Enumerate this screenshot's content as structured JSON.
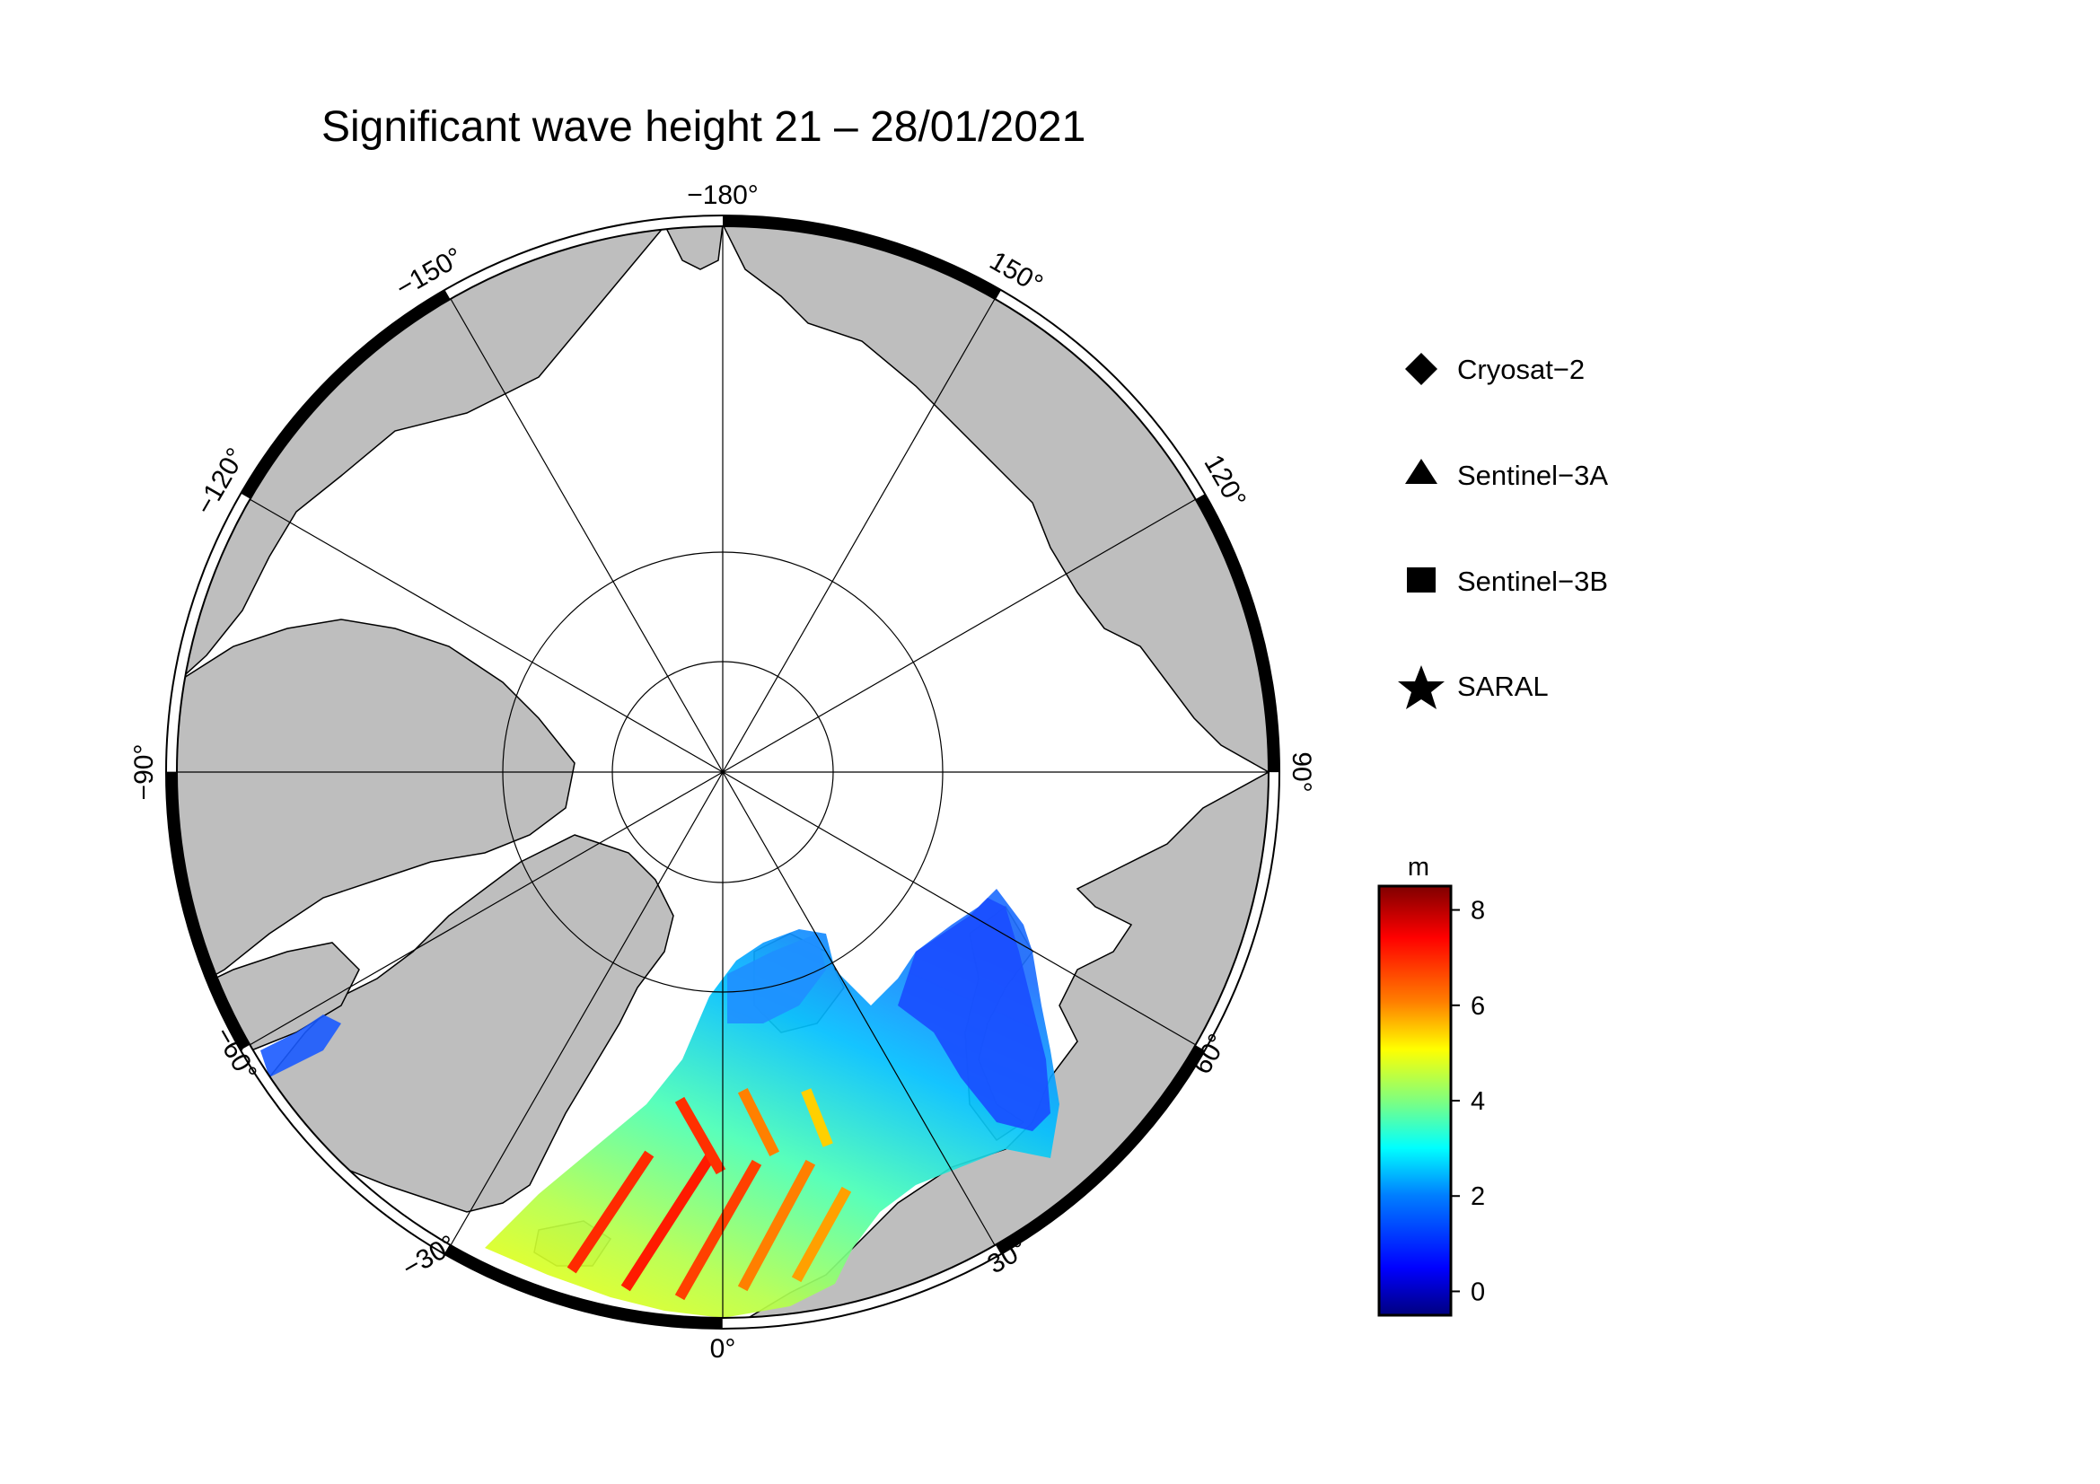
{
  "title": "Significant wave height 21 – 28/01/2021",
  "longitude_labels": {
    "lon_m180": "−180°",
    "lon_m150": "−150°",
    "lon_m120": "−120°",
    "lon_m90": "−90°",
    "lon_m60": "−60°",
    "lon_m30": "−30°",
    "lon_0": "0°",
    "lon_30": "30°",
    "lon_60": "60°",
    "lon_90": "90°",
    "lon_120": "120°",
    "lon_150": "150°"
  },
  "legend": [
    {
      "label": "Cryosat−2",
      "marker": "diamond-icon"
    },
    {
      "label": "Sentinel−3A",
      "marker": "triangle-icon"
    },
    {
      "label": "Sentinel−3B",
      "marker": "square-icon"
    },
    {
      "label": "SARAL",
      "marker": "star-icon"
    }
  ],
  "colorbar": {
    "unit": "m",
    "ticks": [
      "0",
      "2",
      "4",
      "6",
      "8"
    ],
    "range": [
      -0.5,
      8.5
    ],
    "colors": [
      "#00007f",
      "#0000ff",
      "#007fff",
      "#00ffff",
      "#7fff7f",
      "#ffff00",
      "#ff7f00",
      "#ff0000",
      "#7f0000"
    ]
  },
  "map": {
    "projection": "north-polar-stereographic",
    "land_color": "#bebebe",
    "ocean_color": "#ffffff",
    "frame_color": "#000000"
  }
}
